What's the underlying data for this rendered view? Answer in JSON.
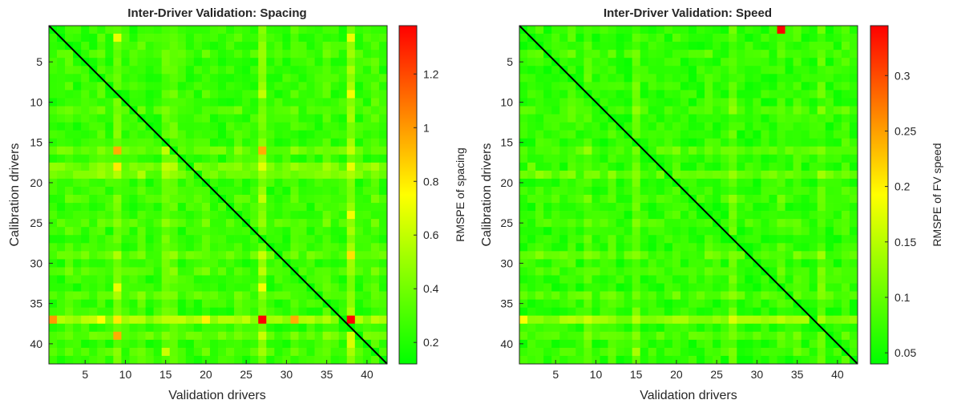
{
  "chart_data": [
    {
      "type": "heatmap",
      "title": "Inter-Driver Validation: Spacing",
      "xlabel": "Validation drivers",
      "ylabel": "Calibration drivers",
      "colorbar_label": "RMSPE of spacing",
      "n": 42,
      "xlim": [
        0.5,
        42.5
      ],
      "ylim": [
        0.5,
        42.5
      ],
      "x_ticks": [
        5,
        10,
        15,
        20,
        25,
        30,
        35,
        40
      ],
      "y_ticks": [
        5,
        10,
        15,
        20,
        25,
        30,
        35,
        40
      ],
      "colorbar_range": [
        0.12,
        1.38
      ],
      "colorbar_ticks": [
        0.2,
        0.4,
        0.6,
        0.8,
        1,
        1.2
      ],
      "colorbar_tick_labels": [
        "0.2",
        "0.4",
        "0.6",
        "0.8",
        "1",
        "1.2"
      ],
      "colormap": [
        "#00ff00",
        "#ffff00",
        "#ff0000"
      ],
      "diagonal_line": true,
      "base_value": 0.24,
      "variation": 0.12,
      "row_offsets": [
        [
          16,
          0.12
        ],
        [
          18,
          0.16
        ],
        [
          19,
          0.14
        ],
        [
          29,
          0.1
        ],
        [
          34,
          0.08
        ],
        [
          37,
          0.28
        ],
        [
          39,
          0.1
        ],
        [
          4,
          0.04
        ],
        [
          11,
          0.05
        ],
        [
          22,
          0.04
        ],
        [
          25,
          0.06
        ],
        [
          31,
          0.06
        ],
        [
          41,
          0.04
        ]
      ],
      "col_offsets": [
        [
          9,
          0.14
        ],
        [
          27,
          0.2
        ],
        [
          38,
          0.22
        ],
        [
          15,
          0.12
        ],
        [
          16,
          0.1
        ],
        [
          3,
          0.06
        ],
        [
          7,
          0.05
        ],
        [
          12,
          0.06
        ],
        [
          20,
          0.06
        ],
        [
          24,
          0.04
        ],
        [
          31,
          0.04
        ],
        [
          35,
          0.06
        ],
        [
          41,
          0.06
        ]
      ],
      "hotspots": [
        [
          37,
          1,
          1.0
        ],
        [
          37,
          27,
          1.38
        ],
        [
          37,
          38,
          1.38
        ],
        [
          16,
          9,
          0.95
        ],
        [
          16,
          27,
          0.95
        ],
        [
          39,
          9,
          0.95
        ],
        [
          37,
          31,
          0.95
        ],
        [
          2,
          9,
          0.7
        ],
        [
          2,
          38,
          0.7
        ],
        [
          9,
          38,
          0.72
        ],
        [
          18,
          9,
          0.8
        ],
        [
          29,
          38,
          0.82
        ],
        [
          33,
          9,
          0.7
        ],
        [
          33,
          27,
          0.72
        ],
        [
          37,
          9,
          0.8
        ],
        [
          37,
          20,
          0.78
        ],
        [
          37,
          7,
          0.75
        ],
        [
          24,
          38,
          0.72
        ],
        [
          41,
          15,
          0.62
        ],
        [
          40,
          38,
          0.65
        ],
        [
          16,
          15,
          0.6
        ],
        [
          9,
          27,
          0.6
        ],
        [
          22,
          27,
          0.6
        ],
        [
          19,
          12,
          0.55
        ],
        [
          29,
          27,
          0.62
        ]
      ]
    },
    {
      "type": "heatmap",
      "title": "Inter-Driver Validation: Speed",
      "xlabel": "Validation drivers",
      "ylabel": "Calibration drivers",
      "colorbar_label": "RMSPE of FV speed",
      "n": 42,
      "xlim": [
        0.5,
        42.5
      ],
      "ylim": [
        0.5,
        42.5
      ],
      "x_ticks": [
        5,
        10,
        15,
        20,
        25,
        30,
        35,
        40
      ],
      "y_ticks": [
        5,
        10,
        15,
        20,
        25,
        30,
        35,
        40
      ],
      "colorbar_range": [
        0.04,
        0.345
      ],
      "colorbar_ticks": [
        0.05,
        0.1,
        0.15,
        0.2,
        0.25,
        0.3
      ],
      "colorbar_tick_labels": [
        "0.05",
        "0.1",
        "0.15",
        "0.2",
        "0.25",
        "0.3"
      ],
      "colormap": [
        "#00ff00",
        "#ffff00",
        "#ff0000"
      ],
      "diagonal_line": true,
      "base_value": 0.065,
      "variation": 0.03,
      "row_offsets": [
        [
          37,
          0.06
        ],
        [
          19,
          0.03
        ],
        [
          16,
          0.02
        ],
        [
          29,
          0.025
        ],
        [
          34,
          0.02
        ],
        [
          39,
          0.02
        ],
        [
          4,
          0.01
        ],
        [
          11,
          0.012
        ],
        [
          22,
          0.01
        ],
        [
          25,
          0.012
        ],
        [
          31,
          0.012
        ],
        [
          41,
          0.01
        ]
      ],
      "col_offsets": [
        [
          15,
          0.03
        ],
        [
          27,
          0.03
        ],
        [
          38,
          0.025
        ],
        [
          9,
          0.02
        ],
        [
          7,
          0.015
        ],
        [
          3,
          0.012
        ],
        [
          12,
          0.014
        ],
        [
          20,
          0.012
        ],
        [
          24,
          0.01
        ],
        [
          33,
          0.015
        ],
        [
          35,
          0.012
        ],
        [
          41,
          0.012
        ]
      ],
      "hotspots": [
        [
          1,
          33,
          0.345
        ],
        [
          37,
          1,
          0.19
        ],
        [
          37,
          27,
          0.17
        ],
        [
          37,
          15,
          0.15
        ],
        [
          37,
          7,
          0.15
        ],
        [
          16,
          9,
          0.13
        ],
        [
          41,
          15,
          0.14
        ],
        [
          39,
          15,
          0.12
        ],
        [
          19,
          27,
          0.13
        ],
        [
          33,
          38,
          0.12
        ],
        [
          37,
          38,
          0.14
        ],
        [
          9,
          38,
          0.11
        ],
        [
          29,
          15,
          0.12
        ],
        [
          24,
          27,
          0.11
        ],
        [
          18,
          2,
          0.11
        ]
      ]
    }
  ]
}
